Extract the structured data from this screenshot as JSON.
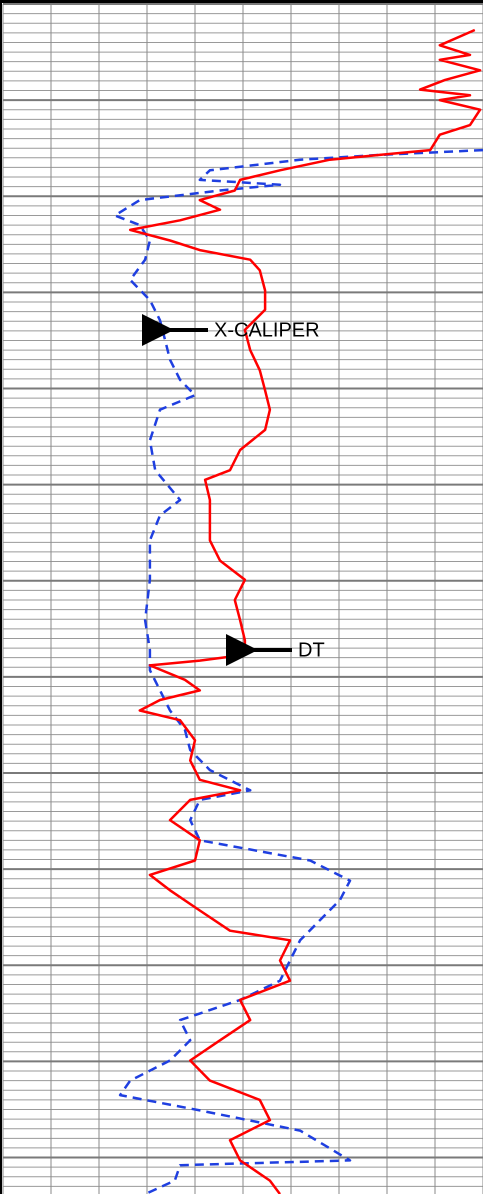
{
  "chart_data": {
    "type": "line",
    "xlim": [
      0,
      10
    ],
    "xticks": [
      0,
      1,
      2,
      3,
      4,
      5,
      6,
      7,
      8,
      9,
      10
    ],
    "ylim": [
      0,
      124
    ],
    "yticks": [
      0,
      10,
      20,
      30,
      40,
      50,
      60,
      70,
      80,
      90,
      100,
      110,
      120
    ],
    "grid": true,
    "series": [
      {
        "name": "DT",
        "color": "#ff0000",
        "dashed": false,
        "depth": [
          2.7,
          4.3,
          5.3,
          5.8,
          6.9,
          7.9,
          8.9,
          9.5,
          10.0,
          11.0,
          12.6,
          13.6,
          15.2,
          15.7,
          16.2,
          17.3,
          18.3,
          19.4,
          20.4,
          21.4,
          22.5,
          23.5,
          24.6,
          25.6,
          26.6,
          27.7,
          29.8,
          31.8,
          33.9,
          36.0,
          38.1,
          40.2,
          42.2,
          44.3,
          46.4,
          48.5,
          49.5,
          51.6,
          53.7,
          55.8,
          57.9,
          59.9,
          62.0,
          64.1,
          66.2,
          67.7,
          68.3,
          68.8,
          70.3,
          71.4,
          72.4,
          73.5,
          74.5,
          76.6,
          78.7,
          80.7,
          81.8,
          82.8,
          84.9,
          87.0,
          89.1,
          90.6,
          92.2,
          94.3,
          96.4,
          97.4,
          99.5,
          101.6,
          103.6,
          105.7,
          107.8,
          109.9,
          112.0,
          114.0,
          116.1,
          118.2,
          120.3,
          122.4,
          123.8
        ],
        "values": [
          9.83,
          9.1,
          9.73,
          9.1,
          9.94,
          9.21,
          8.69,
          9.73,
          9.1,
          9.94,
          9.73,
          9.1,
          8.9,
          7.85,
          6.81,
          5.77,
          4.94,
          4.83,
          4.1,
          4.52,
          3.69,
          2.65,
          3.48,
          4.1,
          5.15,
          5.35,
          5.46,
          5.46,
          5.04,
          5.15,
          5.35,
          5.46,
          5.56,
          5.46,
          4.94,
          4.73,
          4.21,
          4.31,
          4.31,
          4.31,
          4.52,
          5.04,
          4.83,
          4.94,
          5.04,
          5.04,
          4.1,
          3.06,
          3.79,
          4.1,
          3.27,
          2.85,
          3.69,
          4.0,
          3.9,
          4.1,
          4.94,
          3.9,
          3.48,
          4.1,
          4.0,
          3.06,
          3.48,
          4.1,
          4.73,
          5.98,
          5.77,
          5.98,
          4.94,
          5.15,
          4.52,
          3.9,
          4.31,
          5.35,
          5.56,
          4.73,
          4.94,
          5.56,
          5.77
        ]
      },
      {
        "name": "X-CALIPER",
        "color": "#1f3fe0",
        "dashed": true,
        "depth": [
          15.2,
          15.7,
          16.2,
          17.3,
          18.3,
          18.8,
          19.4,
          20.4,
          22.0,
          23.0,
          24.6,
          26.6,
          28.7,
          30.8,
          32.9,
          35.0,
          37.0,
          39.1,
          40.7,
          42.2,
          45.4,
          48.5,
          51.6,
          53.2,
          55.8,
          59.9,
          64.1,
          67.2,
          69.3,
          71.4,
          73.5,
          75.5,
          77.6,
          79.7,
          81.8,
          82.8,
          84.9,
          87.0,
          89.1,
          91.2,
          93.2,
          97.4,
          101.6,
          103.6,
          105.7,
          107.8,
          109.9,
          112.0,
          113.5,
          115.1,
          117.2,
          120.3,
          120.8,
          122.4,
          123.8
        ],
        "values": [
          10.0,
          7.85,
          6.19,
          4.31,
          4.1,
          5.77,
          4.52,
          2.85,
          2.33,
          2.85,
          3.06,
          2.96,
          2.65,
          3.06,
          3.27,
          3.38,
          3.48,
          3.69,
          4.0,
          3.27,
          3.06,
          3.17,
          3.69,
          3.27,
          3.06,
          3.06,
          2.96,
          3.06,
          3.06,
          3.27,
          3.48,
          3.79,
          3.9,
          4.31,
          5.15,
          4.1,
          3.9,
          4.1,
          6.4,
          7.23,
          7.02,
          6.19,
          5.77,
          4.94,
          3.69,
          3.9,
          3.48,
          2.65,
          2.44,
          4.1,
          6.19,
          7.23,
          3.69,
          3.58,
          2.96
        ]
      }
    ]
  }
}
